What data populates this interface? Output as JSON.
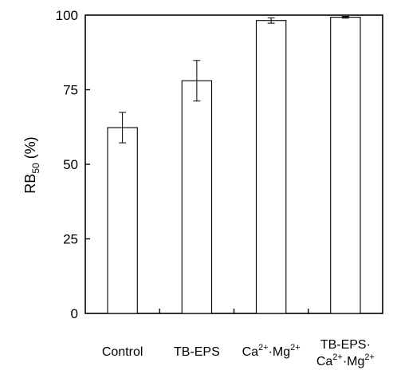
{
  "chart_data": {
    "type": "bar",
    "title": "",
    "xlabel": "",
    "ylabel": {
      "base": "RB",
      "sub": "50",
      "suffix": " (%)"
    },
    "ylim": [
      0,
      100
    ],
    "yticks": [
      0,
      25,
      50,
      75,
      100
    ],
    "yticks_text": [
      "0",
      "25",
      "50",
      "75",
      "100"
    ],
    "grid": false,
    "legend": "none",
    "bar_fill": "#ffffff",
    "bar_stroke": "#000000",
    "categories": [
      {
        "lines": [
          [
            {
              "t": "Control"
            }
          ]
        ]
      },
      {
        "lines": [
          [
            {
              "t": "TB-EPS"
            }
          ]
        ]
      },
      {
        "lines": [
          [
            {
              "t": "Ca"
            },
            {
              "t": "2+",
              "sup": true
            },
            {
              "t": "·Mg"
            },
            {
              "t": "2+",
              "sup": true
            }
          ]
        ]
      },
      {
        "lines": [
          [
            {
              "t": "TB-EPS·"
            }
          ],
          [
            {
              "t": "Ca"
            },
            {
              "t": "2+",
              "sup": true
            },
            {
              "t": "·Mg"
            },
            {
              "t": "2+",
              "sup": true
            }
          ]
        ]
      }
    ],
    "values": [
      62.3,
      78.0,
      98.2,
      99.3
    ],
    "errors": [
      5.1,
      6.8,
      0.9,
      0.3
    ]
  }
}
